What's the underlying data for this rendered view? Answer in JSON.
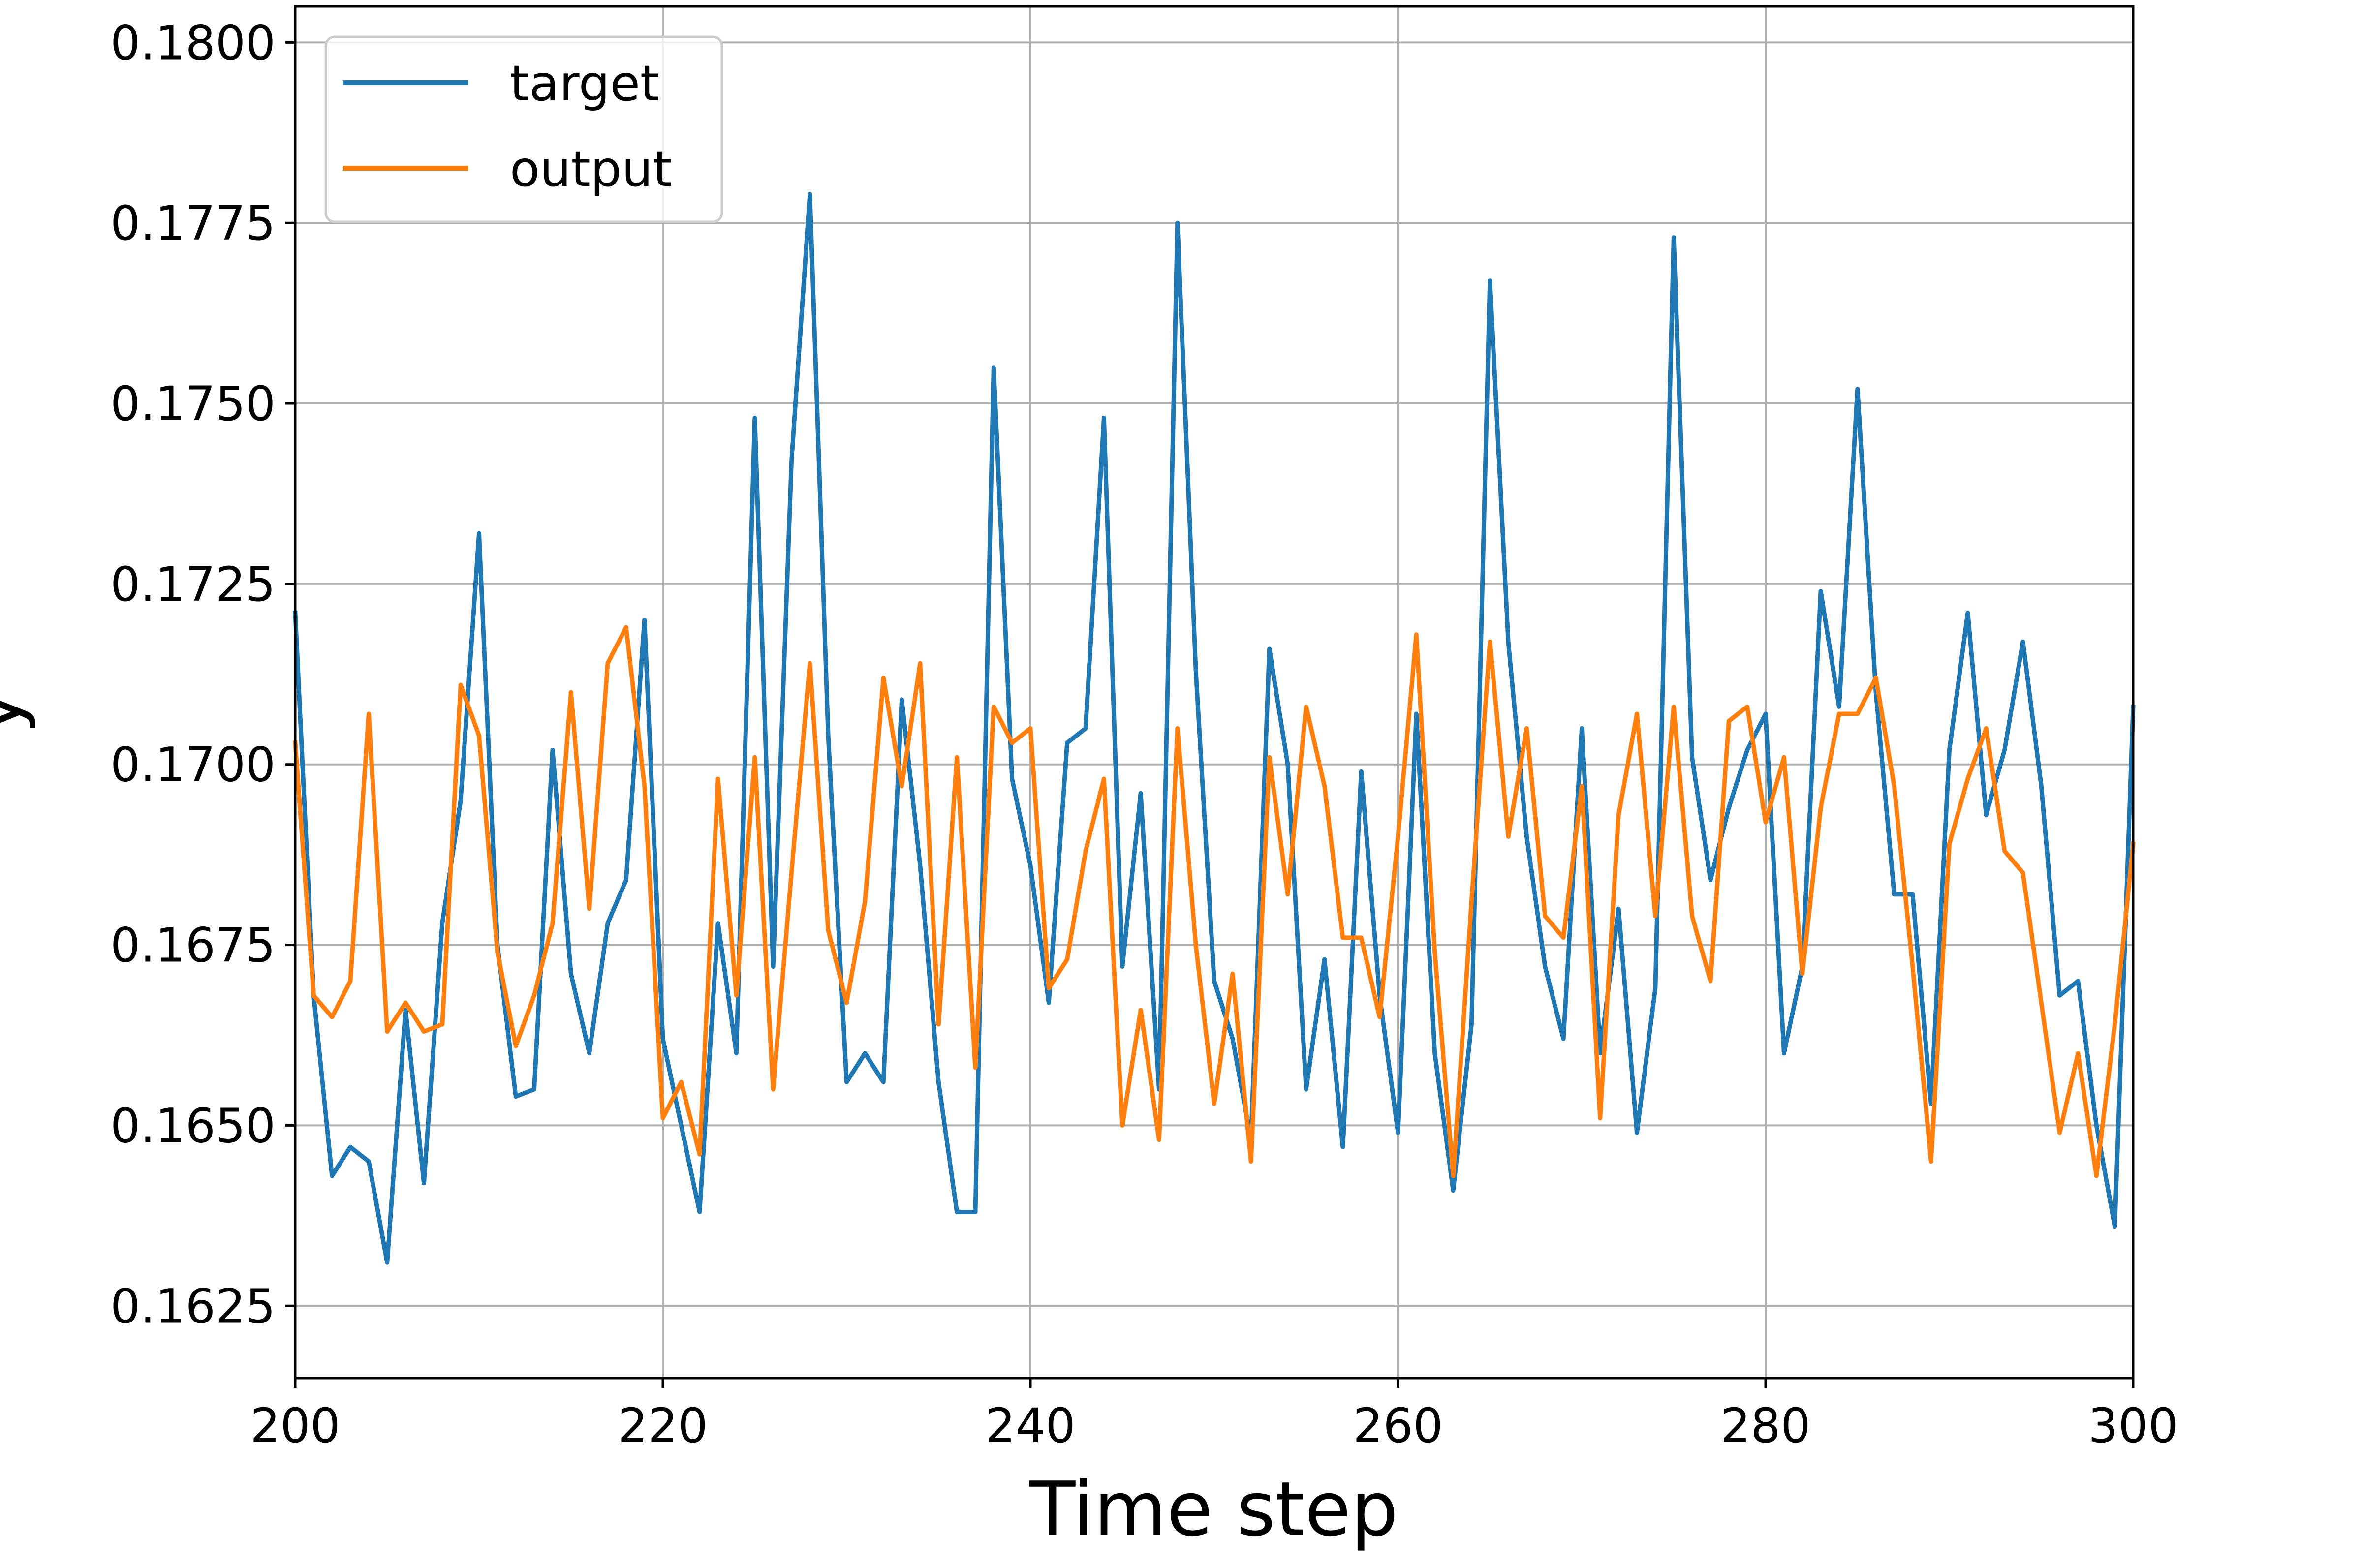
{
  "chart_data": {
    "type": "line",
    "title": "",
    "xlabel": "Time step",
    "ylabel": "y",
    "xlim": [
      200,
      300
    ],
    "ylim": [
      0.1615,
      0.1805
    ],
    "x_ticks": [
      200,
      220,
      240,
      260,
      280,
      300
    ],
    "y_ticks": [
      0.1625,
      0.165,
      0.1675,
      0.17,
      0.1725,
      0.175,
      0.1775,
      0.18
    ],
    "y_tick_labels": [
      "0.1625",
      "0.1650",
      "0.1675",
      "0.1700",
      "0.1725",
      "0.1750",
      "0.1775",
      "0.1800"
    ],
    "x_tick_labels": [
      "200",
      "220",
      "240",
      "260",
      "280",
      "300"
    ],
    "grid": true,
    "legend_position": "top-left",
    "x_start": 200,
    "x_step": 1,
    "series": [
      {
        "name": "target",
        "color": "#1f77b4",
        "values": [
          0.1721,
          0.1668,
          0.1643,
          0.1647,
          0.1645,
          0.1631,
          0.1666,
          0.1642,
          0.1678,
          0.1695,
          0.1732,
          0.1675,
          0.1654,
          0.1655,
          0.1702,
          0.1671,
          0.166,
          0.1678,
          0.1684,
          0.172,
          0.1662,
          0.165,
          0.1638,
          0.1678,
          0.166,
          0.1748,
          0.1672,
          0.1742,
          0.1779,
          0.1704,
          0.1656,
          0.166,
          0.1656,
          0.1709,
          0.1686,
          0.1656,
          0.1638,
          0.1638,
          0.1755,
          0.1698,
          0.1686,
          0.1667,
          0.1703,
          0.1705,
          0.1748,
          0.1672,
          0.1696,
          0.1655,
          0.1775,
          0.1713,
          0.167,
          0.1662,
          0.1648,
          0.1716,
          0.17,
          0.1655,
          0.1673,
          0.1647,
          0.1699,
          0.1668,
          0.1649,
          0.1707,
          0.166,
          0.1641,
          0.1664,
          0.1767,
          0.1717,
          0.169,
          0.1672,
          0.1662,
          0.1705,
          0.166,
          0.168,
          0.1649,
          0.1669,
          0.1773,
          0.1701,
          0.1684,
          0.1694,
          0.1702,
          0.1707,
          0.166,
          0.1672,
          0.1724,
          0.1708,
          0.1752,
          0.171,
          0.1682,
          0.1682,
          0.1653,
          0.1702,
          0.1721,
          0.1693,
          0.1702,
          0.1717,
          0.1697,
          0.1668,
          0.167,
          0.165,
          0.1636,
          0.1708
        ]
      },
      {
        "name": "output",
        "color": "#ff7f0e",
        "values": [
          0.1703,
          0.1668,
          0.1665,
          0.167,
          0.1707,
          0.1663,
          0.1667,
          0.1663,
          0.1664,
          0.1711,
          0.1704,
          0.1674,
          0.1661,
          0.1668,
          0.1678,
          0.171,
          0.168,
          0.1714,
          0.1719,
          0.1697,
          0.1651,
          0.1656,
          0.1646,
          0.1698,
          0.1668,
          0.1701,
          0.1655,
          0.1685,
          0.1714,
          0.1677,
          0.1667,
          0.1681,
          0.1712,
          0.1697,
          0.1714,
          0.1664,
          0.1701,
          0.1658,
          0.1708,
          0.1703,
          0.1705,
          0.1669,
          0.1673,
          0.1688,
          0.1698,
          0.165,
          0.1666,
          0.1648,
          0.1705,
          0.1675,
          0.1653,
          0.1671,
          0.1645,
          0.1701,
          0.1682,
          0.1708,
          0.1697,
          0.1676,
          0.1676,
          0.1665,
          0.169,
          0.1718,
          0.1674,
          0.1643,
          0.1681,
          0.1717,
          0.169,
          0.1705,
          0.1679,
          0.1676,
          0.1697,
          0.1651,
          0.1693,
          0.1707,
          0.1679,
          0.1708,
          0.1679,
          0.167,
          0.1706,
          0.1708,
          0.1692,
          0.1701,
          0.1671,
          0.1694,
          0.1707,
          0.1707,
          0.1712,
          0.1697,
          0.1672,
          0.1645,
          0.1689,
          0.1698,
          0.1705,
          0.1688,
          0.1685,
          0.1667,
          0.1649,
          0.166,
          0.1643,
          0.1664,
          0.1689
        ]
      }
    ]
  }
}
